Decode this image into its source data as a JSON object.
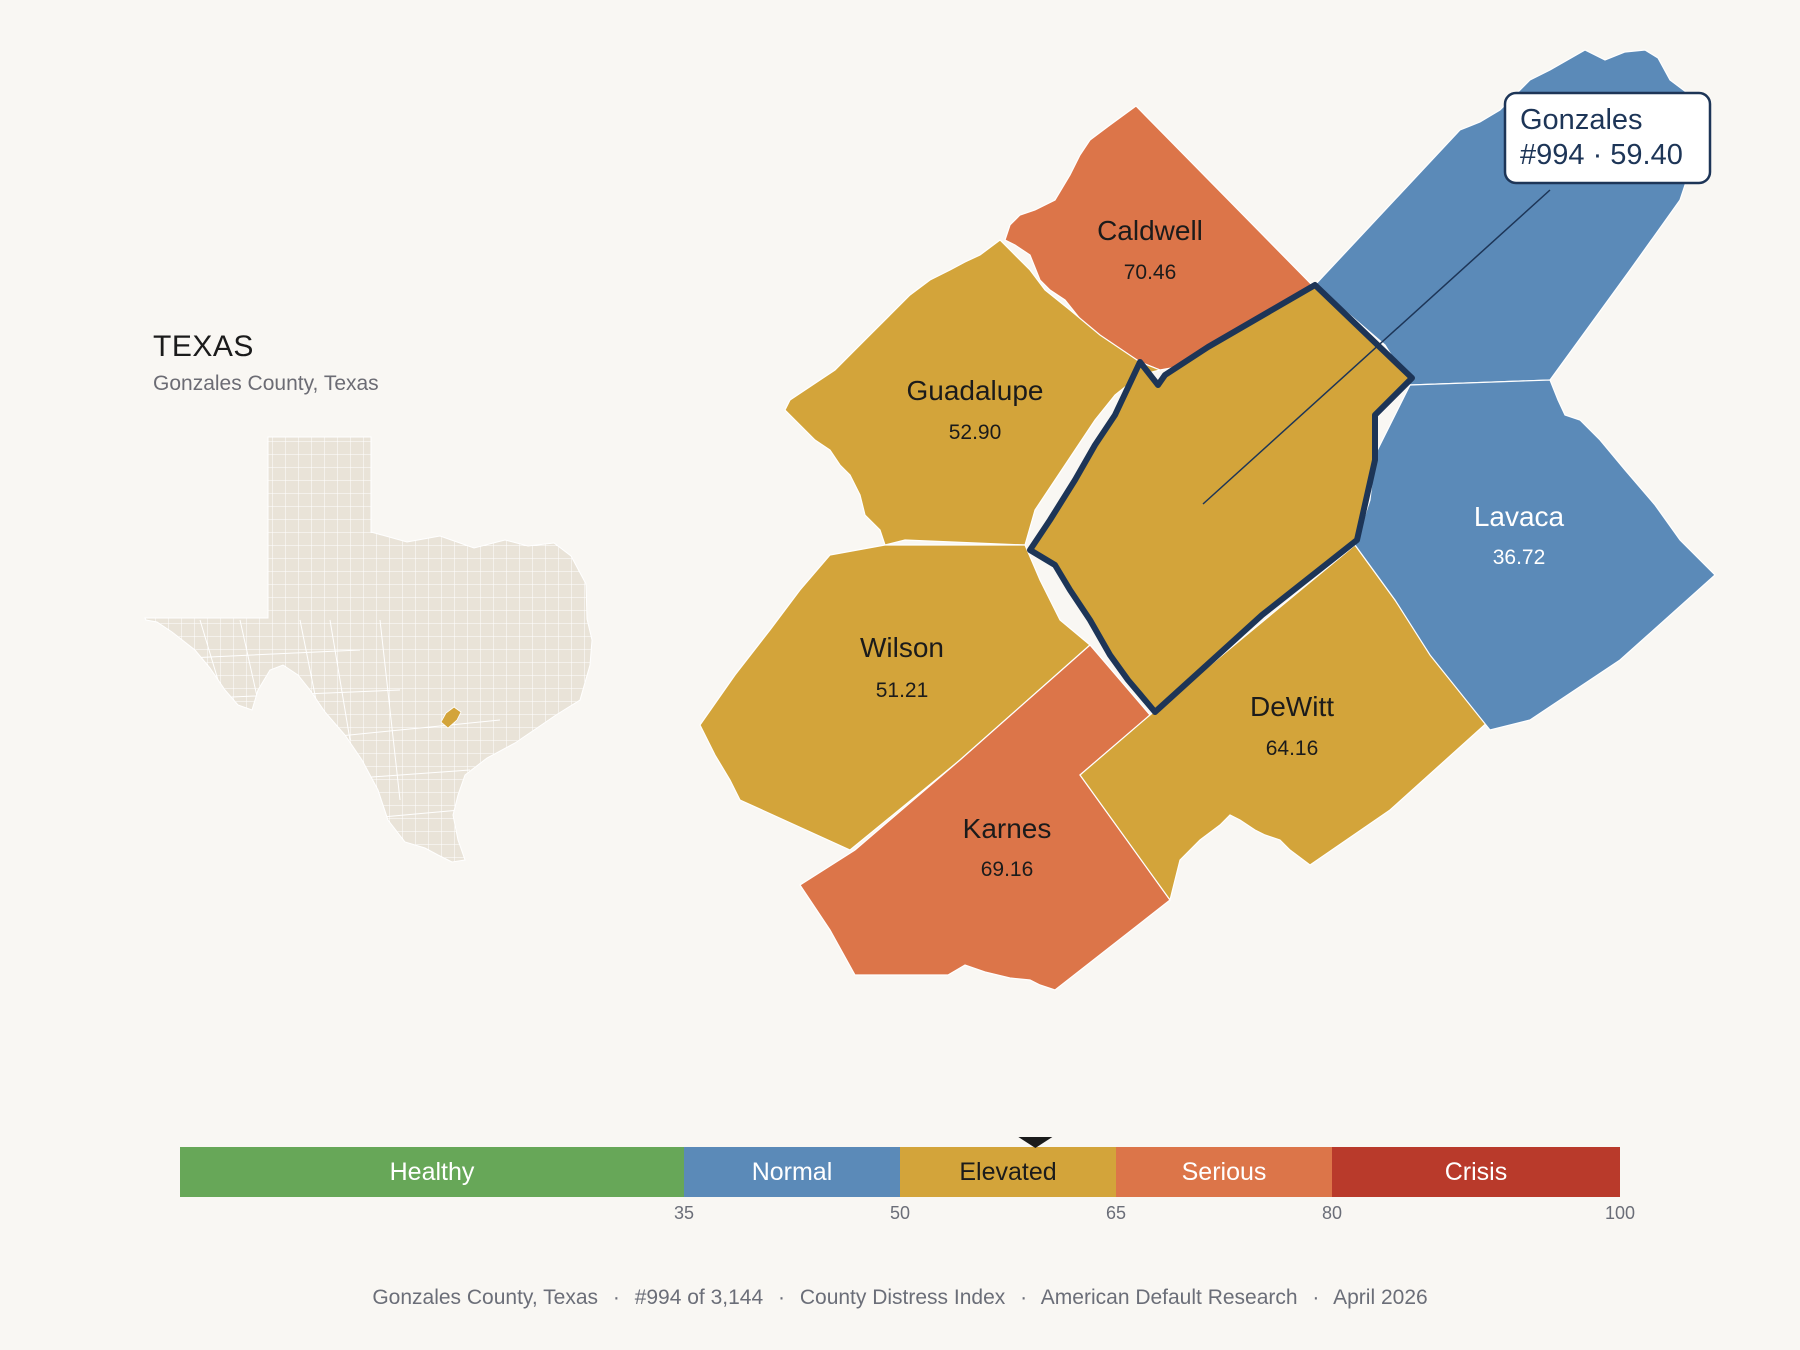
{
  "inset": {
    "title": "TEXAS",
    "subtitle": "Gonzales County, Texas",
    "base_color": "#e9e3d8",
    "highlight_color": "#d3a43a"
  },
  "counties": [
    {
      "id": "gonzales",
      "name": "Gonzales",
      "value": "59.40",
      "color": "#d3a43a",
      "selected": true
    },
    {
      "id": "caldwell",
      "name": "Caldwell",
      "value": "70.46",
      "color": "#dc7549"
    },
    {
      "id": "guadalupe",
      "name": "Guadalupe",
      "value": "52.90",
      "color": "#d3a43a"
    },
    {
      "id": "wilson",
      "name": "Wilson",
      "value": "51.21",
      "color": "#d3a43a"
    },
    {
      "id": "karnes",
      "name": "Karnes",
      "value": "69.16",
      "color": "#dc7549"
    },
    {
      "id": "dewitt",
      "name": "DeWitt",
      "value": "64.16",
      "color": "#d3a43a"
    },
    {
      "id": "lavaca",
      "name": "Lavaca",
      "value": "36.72",
      "color": "#5b8ab8"
    },
    {
      "id": "fayette",
      "name": "",
      "value": "",
      "color": "#5b8ab8"
    }
  ],
  "callout": {
    "line1": "Gonzales",
    "line2": "#994 · 59.40",
    "border_color": "#1d3557"
  },
  "legend": {
    "marker_value": 59.4,
    "domain": [
      0,
      100
    ],
    "bands": [
      {
        "label": "Healthy",
        "from": 0,
        "to": 35,
        "color": "#67a758"
      },
      {
        "label": "Normal",
        "from": 35,
        "to": 50,
        "color": "#5b8ab8"
      },
      {
        "label": "Elevated",
        "from": 50,
        "to": 65,
        "color": "#d3a43a"
      },
      {
        "label": "Serious",
        "from": 65,
        "to": 80,
        "color": "#dc7549"
      },
      {
        "label": "Crisis",
        "from": 80,
        "to": 100,
        "color": "#b93a2b"
      }
    ],
    "ticks": [
      "35",
      "50",
      "65",
      "80",
      "100"
    ]
  },
  "footer": {
    "county": "Gonzales County, Texas",
    "rank": "#994 of 3,144",
    "index": "County Distress Index",
    "source": "American Default Research",
    "date": "April 2026",
    "separator": "·"
  }
}
